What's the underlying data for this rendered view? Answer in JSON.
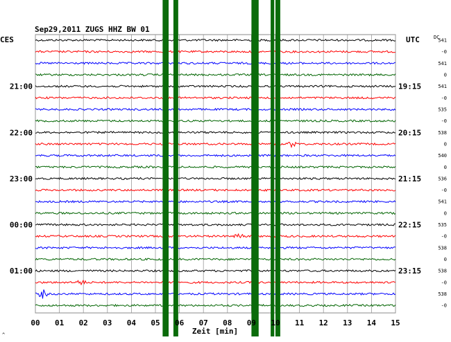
{
  "header": {
    "title": "Sep29,2011  ZUGS HHZ BW 01",
    "left_tz": "CES",
    "right_tz": "UTC",
    "dc_label": "DC"
  },
  "chart_data": {
    "type": "line",
    "title": "Sep29,2011  ZUGS HHZ BW 01",
    "xlabel": "Zeit [min]",
    "xlim": [
      0,
      15
    ],
    "x_ticks": [
      "00",
      "01",
      "02",
      "03",
      "04",
      "05",
      "06",
      "07",
      "08",
      "09",
      "10",
      "11",
      "12",
      "13",
      "14",
      "15"
    ],
    "trace_colors": [
      "#000000",
      "#ff0000",
      "#0000ff",
      "#006400"
    ],
    "trace_count": 24,
    "left_time_labels": [
      {
        "trace": 4,
        "label": "21:00"
      },
      {
        "trace": 8,
        "label": "22:00"
      },
      {
        "trace": 12,
        "label": "23:00"
      },
      {
        "trace": 16,
        "label": "00:00"
      },
      {
        "trace": 20,
        "label": "01:00"
      }
    ],
    "right_time_labels": [
      {
        "trace": 4,
        "label": "19:15"
      },
      {
        "trace": 8,
        "label": "20:15"
      },
      {
        "trace": 12,
        "label": "21:15"
      },
      {
        "trace": 16,
        "label": "22:15"
      },
      {
        "trace": 20,
        "label": "23:15"
      }
    ],
    "dc_values": [
      "541",
      "-0",
      "541",
      "0",
      "541",
      "-0",
      "535",
      "-0",
      "538",
      "0",
      "540",
      "0",
      "536",
      "-0",
      "541",
      "0",
      "535",
      "-0",
      "538",
      "0",
      "538",
      "-0",
      "538",
      "-0"
    ],
    "saturated_bands_min": [
      [
        5.3,
        5.55
      ],
      [
        5.75,
        5.95
      ],
      [
        9.0,
        9.3
      ],
      [
        9.8,
        9.95
      ],
      [
        10.0,
        10.2
      ]
    ],
    "events": [
      {
        "trace": 9,
        "minute": 10.7,
        "amplitude": "small"
      },
      {
        "trace": 17,
        "minute": 8.5,
        "amplitude": "small"
      },
      {
        "trace": 21,
        "minute": 1.9,
        "amplitude": "small"
      },
      {
        "trace": 22,
        "minute": 0.3,
        "amplitude": "medium"
      }
    ]
  },
  "footer": {
    "mark": "^"
  }
}
